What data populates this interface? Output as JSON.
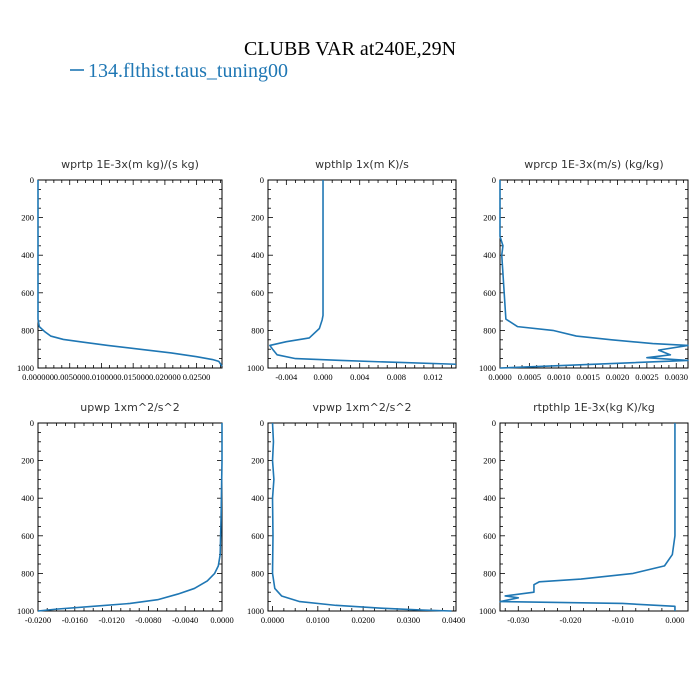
{
  "figure": {
    "title": "CLUBB VAR at240E,29N",
    "legend_label": "134.flthist.taus_tuning00",
    "line_color": "#1f77b4"
  },
  "chart_data": [
    {
      "type": "line",
      "title": "wprtp  1E-3x(m kg)/(s kg)",
      "xlim": [
        0,
        0.029
      ],
      "ylim": [
        1000,
        0
      ],
      "xticks": [
        0,
        0.005,
        0.01,
        0.015,
        0.02,
        0.025
      ],
      "xtick_labels": [
        "0.000000",
        "0.005000",
        "0.010000",
        "0.015000",
        "0.020000",
        "0.02500"
      ],
      "yticks": [
        0,
        200,
        400,
        600,
        800,
        1000
      ],
      "ytick_labels": [
        "0",
        "200",
        "400",
        "600",
        "800",
        "1000"
      ],
      "series": [
        {
          "name": "134.flthist.taus_tuning00",
          "x": [
            0,
            0,
            0,
            0,
            0,
            0.0002,
            0.001,
            0.002,
            0.004,
            0.007,
            0.011,
            0.016,
            0.021,
            0.025,
            0.0275,
            0.0285,
            0.029
          ],
          "y": [
            0,
            200,
            400,
            600,
            740,
            780,
            805,
            830,
            848,
            862,
            880,
            900,
            920,
            940,
            955,
            965,
            990
          ]
        }
      ]
    },
    {
      "type": "line",
      "title": "wpthlp  1x(m K)/s",
      "xlim": [
        -0.006,
        0.0145
      ],
      "ylim": [
        1000,
        0
      ],
      "xticks": [
        -0.004,
        0,
        0.004,
        0.008,
        0.012
      ],
      "xtick_labels": [
        "-0.004",
        "0.000",
        "0.004",
        "0.008",
        "0.012"
      ],
      "yticks": [
        0,
        200,
        400,
        600,
        800,
        1000
      ],
      "ytick_labels": [
        "0",
        "200",
        "400",
        "600",
        "800",
        "1000"
      ],
      "series": [
        {
          "name": "134.flthist.taus_tuning00",
          "x": [
            0,
            0,
            0,
            0,
            0,
            -0.0001,
            -0.0004,
            -0.0015,
            -0.004,
            -0.0058,
            -0.0055,
            -0.005,
            -0.003,
            0.002,
            0.008,
            0.0145
          ],
          "y": [
            0,
            200,
            400,
            600,
            720,
            745,
            790,
            840,
            860,
            880,
            900,
            930,
            950,
            960,
            970,
            980
          ]
        }
      ]
    },
    {
      "type": "line",
      "title": "wprcp  1E-3x(m/s) (kg/kg)",
      "xlim": [
        0,
        0.0032
      ],
      "ylim": [
        1000,
        0
      ],
      "xticks": [
        0,
        0.0005,
        0.001,
        0.0015,
        0.002,
        0.0025,
        0.003
      ],
      "xtick_labels": [
        "0.0000",
        "0.0005",
        "0.0010",
        "0.0015",
        "0.0020",
        "0.0025",
        "0.0030"
      ],
      "yticks": [
        0,
        200,
        400,
        600,
        800,
        1000
      ],
      "ytick_labels": [
        "0",
        "200",
        "400",
        "600",
        "800",
        "1000"
      ],
      "series": [
        {
          "name": "134.flthist.taus_tuning00",
          "x": [
            0,
            0,
            5e-05,
            3e-05,
            0.0001,
            0.0003,
            0.0009,
            0.0013,
            0.0019,
            0.0026,
            0.0032,
            0.0027,
            0.0029,
            0.0025,
            0.0032,
            0.002,
            0
          ],
          "y": [
            0,
            300,
            350,
            400,
            740,
            780,
            800,
            830,
            850,
            870,
            880,
            905,
            930,
            945,
            960,
            975,
            1000
          ]
        }
      ]
    },
    {
      "type": "line",
      "title": "upwp  1xm^2/s^2",
      "xlim": [
        -0.02,
        0
      ],
      "ylim": [
        1000,
        0
      ],
      "xticks": [
        -0.02,
        -0.016,
        -0.012,
        -0.008,
        -0.004,
        0
      ],
      "xtick_labels": [
        "-0.0200",
        "-0.0160",
        "-0.0120",
        "-0.0080",
        "-0.0040",
        "0.0000"
      ],
      "yticks": [
        0,
        200,
        400,
        600,
        800,
        1000
      ],
      "ytick_labels": [
        "0",
        "200",
        "400",
        "600",
        "800",
        "1000"
      ],
      "series": [
        {
          "name": "134.flthist.taus_tuning00",
          "x": [
            0,
            0,
            -0.0001,
            -0.0002,
            -0.0004,
            -0.0008,
            -0.0016,
            -0.003,
            -0.0048,
            -0.007,
            -0.01,
            -0.014,
            -0.018,
            -0.02
          ],
          "y": [
            0,
            200,
            500,
            700,
            760,
            800,
            840,
            880,
            910,
            940,
            960,
            975,
            990,
            1000
          ]
        }
      ]
    },
    {
      "type": "line",
      "title": "vpwp  1xm^2/s^2",
      "xlim": [
        -0.001,
        0.0405
      ],
      "ylim": [
        1000,
        0
      ],
      "xticks": [
        0,
        0.01,
        0.02,
        0.03,
        0.04
      ],
      "xtick_labels": [
        "0.0000",
        "0.0100",
        "0.0200",
        "0.0300",
        "0.0400"
      ],
      "yticks": [
        0,
        200,
        400,
        600,
        800,
        1000
      ],
      "ytick_labels": [
        "0",
        "200",
        "400",
        "600",
        "800",
        "1000"
      ],
      "series": [
        {
          "name": "134.flthist.taus_tuning00",
          "x": [
            0,
            0.0002,
            0,
            0.0003,
            0,
            0.0001,
            0,
            0.0005,
            0.002,
            0.006,
            0.014,
            0.024,
            0.033,
            0.0395
          ],
          "y": [
            0,
            100,
            200,
            300,
            400,
            600,
            800,
            880,
            920,
            950,
            970,
            985,
            995,
            1000
          ]
        }
      ]
    },
    {
      "type": "line",
      "title": "rtpthlp  1E-3x(kg K)/kg",
      "xlim": [
        -0.0335,
        0.0025
      ],
      "ylim": [
        1000,
        0
      ],
      "xticks": [
        -0.03,
        -0.02,
        -0.01,
        0
      ],
      "xtick_labels": [
        "-0.030",
        "-0.020",
        "-0.010",
        "0.000"
      ],
      "yticks": [
        0,
        200,
        400,
        600,
        800,
        1000
      ],
      "ytick_labels": [
        "0",
        "200",
        "400",
        "600",
        "800",
        "1000"
      ],
      "series": [
        {
          "name": "134.flthist.taus_tuning00",
          "x": [
            0,
            0,
            0,
            0,
            -0.0005,
            -0.002,
            -0.008,
            -0.018,
            -0.026,
            -0.027,
            -0.027,
            -0.0325,
            -0.03,
            -0.0335,
            -0.01,
            0,
            0
          ],
          "y": [
            0,
            200,
            400,
            600,
            700,
            760,
            800,
            830,
            845,
            860,
            900,
            920,
            930,
            950,
            960,
            975,
            1000
          ]
        }
      ]
    }
  ]
}
